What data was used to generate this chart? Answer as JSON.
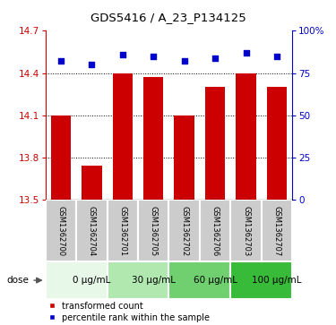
{
  "title": "GDS5416 / A_23_P134125",
  "samples": [
    "GSM1362700",
    "GSM1362704",
    "GSM1362701",
    "GSM1362705",
    "GSM1362702",
    "GSM1362706",
    "GSM1362703",
    "GSM1362707"
  ],
  "bar_values": [
    14.1,
    13.74,
    14.4,
    14.37,
    14.1,
    14.3,
    14.4,
    14.3
  ],
  "percentile_values": [
    82,
    80,
    86,
    85,
    82,
    84,
    87,
    85
  ],
  "bar_color": "#cc0000",
  "percentile_color": "#0000cc",
  "ylim_left": [
    13.5,
    14.7
  ],
  "ylim_right": [
    0,
    100
  ],
  "yticks_left": [
    13.5,
    13.8,
    14.1,
    14.4,
    14.7
  ],
  "yticks_right": [
    0,
    25,
    50,
    75,
    100
  ],
  "ytick_labels_right": [
    "0",
    "25",
    "50",
    "75",
    "100%"
  ],
  "dose_groups": [
    {
      "label": "0 μg/mL",
      "start": 0,
      "end": 2,
      "color": "#e8f8e8"
    },
    {
      "label": "30 μg/mL",
      "start": 2,
      "end": 4,
      "color": "#b0e8b0"
    },
    {
      "label": "60 μg/mL",
      "start": 4,
      "end": 6,
      "color": "#70d070"
    },
    {
      "label": "100 μg/mL",
      "start": 6,
      "end": 8,
      "color": "#38bb38"
    }
  ],
  "legend_bar_label": "transformed count",
  "legend_percentile_label": "percentile rank within the sample",
  "background_color": "#ffffff",
  "plot_bg": "#ffffff",
  "bar_bottom": 13.5,
  "bar_width": 0.65,
  "sample_box_color": "#cccccc",
  "gridline_color": "black",
  "spine_color": "#000000"
}
